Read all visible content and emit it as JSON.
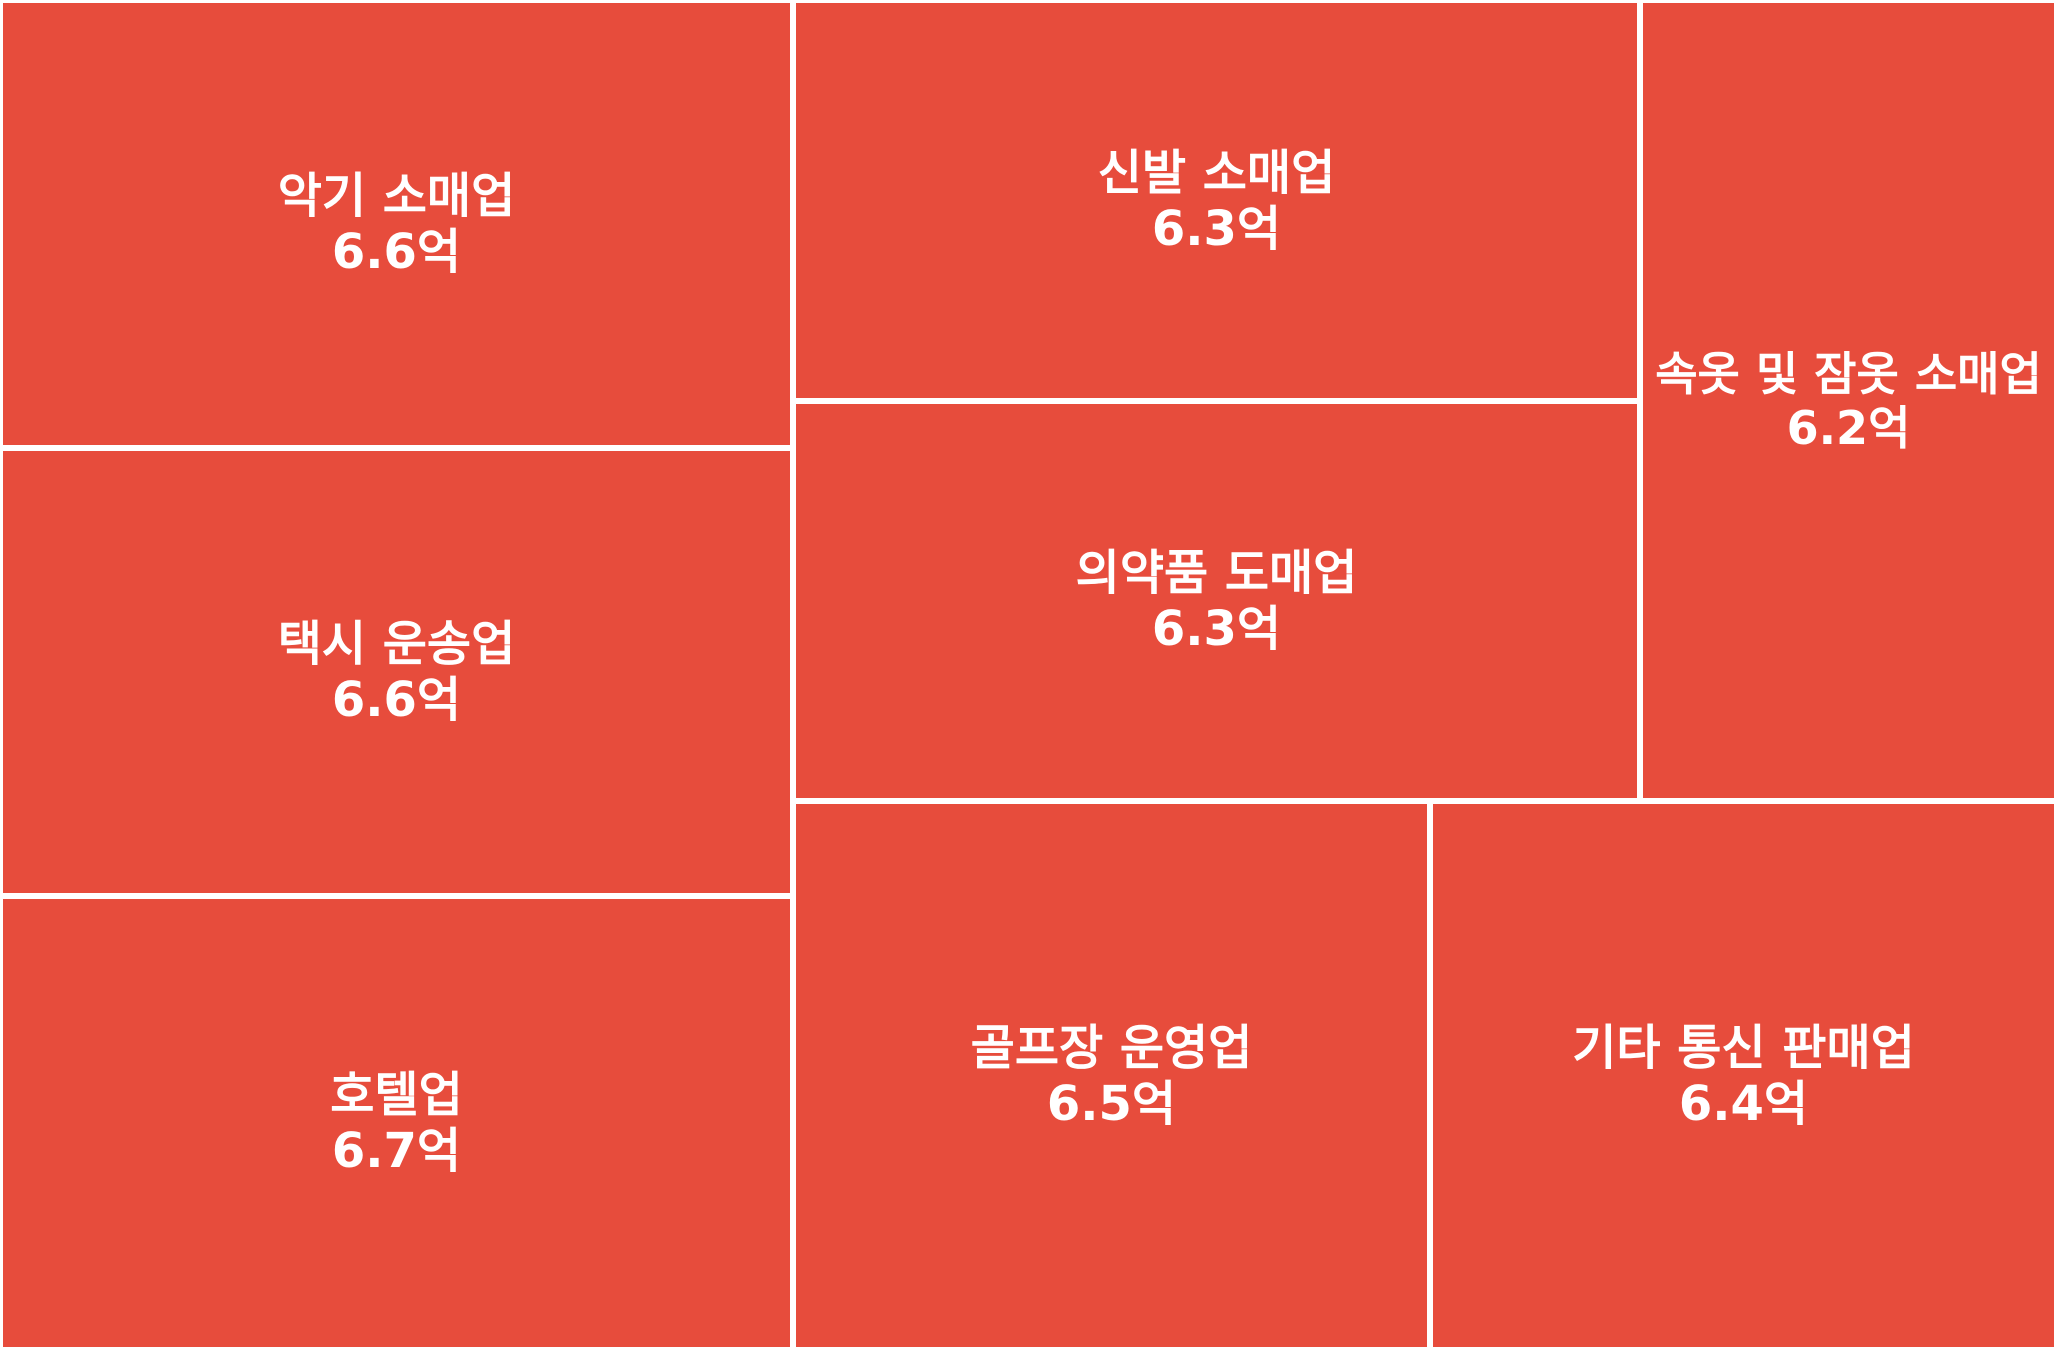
{
  "chart_data": {
    "type": "treemap",
    "colors": {
      "tile": "#e74c3c",
      "border": "#ffffff",
      "text": "#ffffff"
    },
    "items": [
      {
        "name": "호텔업",
        "value": 6.7,
        "value_label": "6.7억"
      },
      {
        "name": "악기 소매업",
        "value": 6.6,
        "value_label": "6.6억"
      },
      {
        "name": "택시 운송업",
        "value": 6.6,
        "value_label": "6.6억"
      },
      {
        "name": "골프장 운영업",
        "value": 6.5,
        "value_label": "6.5억"
      },
      {
        "name": "기타 통신 판매업",
        "value": 6.4,
        "value_label": "6.4억"
      },
      {
        "name": "신발 소매업",
        "value": 6.3,
        "value_label": "6.3억"
      },
      {
        "name": "의약품 도매업",
        "value": 6.3,
        "value_label": "6.3억"
      },
      {
        "name": "속옷 및 잠옷 소매업",
        "value": 6.2,
        "value_label": "6.2억"
      }
    ]
  }
}
